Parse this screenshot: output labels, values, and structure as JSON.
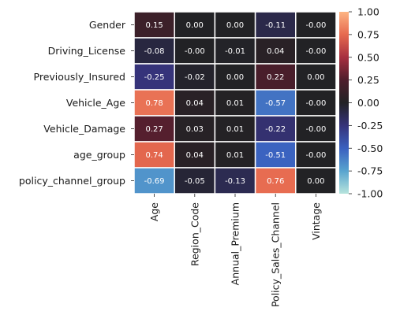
{
  "chart_data": {
    "type": "heatmap",
    "rows": [
      "Gender",
      "Driving_License",
      "Previously_Insured",
      "Vehicle_Age",
      "Vehicle_Damage",
      "age_group",
      "policy_channel_group"
    ],
    "columns": [
      "Age",
      "Region_Code",
      "Annual_Premium",
      "Policy_Sales_Channel",
      "Vintage"
    ],
    "values": [
      [
        0.15,
        0.0,
        0.0,
        -0.11,
        -0.0
      ],
      [
        -0.08,
        -0.0,
        -0.01,
        0.04,
        -0.0
      ],
      [
        -0.25,
        -0.02,
        0.0,
        0.22,
        0.0
      ],
      [
        0.78,
        0.04,
        0.01,
        -0.57,
        -0.0
      ],
      [
        0.27,
        0.03,
        0.01,
        -0.22,
        -0.0
      ],
      [
        0.74,
        0.04,
        0.01,
        -0.51,
        -0.0
      ],
      [
        -0.69,
        -0.05,
        -0.13,
        0.76,
        0.0
      ]
    ],
    "labels": [
      [
        "0.15",
        "0.00",
        "0.00",
        "-0.11",
        "-0.00"
      ],
      [
        "-0.08",
        "-0.00",
        "-0.01",
        "0.04",
        "-0.00"
      ],
      [
        "-0.25",
        "-0.02",
        "0.00",
        "0.22",
        "0.00"
      ],
      [
        "0.78",
        "0.04",
        "0.01",
        "-0.57",
        "-0.00"
      ],
      [
        "0.27",
        "0.03",
        "0.01",
        "-0.22",
        "-0.00"
      ],
      [
        "0.74",
        "0.04",
        "0.01",
        "-0.51",
        "-0.00"
      ],
      [
        "-0.69",
        "-0.05",
        "-0.13",
        "0.76",
        "0.00"
      ]
    ],
    "vmin": -1.0,
    "vmax": 1.0,
    "colormap": "icefire",
    "colorbar_ticks": [
      "1.00",
      "0.75",
      "0.50",
      "0.25",
      "0.00",
      "-0.25",
      "-0.50",
      "-0.75",
      "-1.00"
    ],
    "colorbar_tick_values": [
      1.0,
      0.75,
      0.5,
      0.25,
      0.0,
      -0.25,
      -0.5,
      -0.75,
      -1.0
    ],
    "colorbar_stops": [
      {
        "value": -1.0,
        "color": "#b7e4dc"
      },
      {
        "value": -0.75,
        "color": "#58a4cf"
      },
      {
        "value": -0.5,
        "color": "#3a60bf"
      },
      {
        "value": -0.25,
        "color": "#36337a"
      },
      {
        "value": 0.0,
        "color": "#222225"
      },
      {
        "value": 0.25,
        "color": "#4e1e2c"
      },
      {
        "value": 0.5,
        "color": "#a72f40"
      },
      {
        "value": 0.75,
        "color": "#e6694f"
      },
      {
        "value": 1.0,
        "color": "#fdb483"
      }
    ],
    "cell_border_color": "#ffffff",
    "annotation_color": "#ffffff"
  }
}
